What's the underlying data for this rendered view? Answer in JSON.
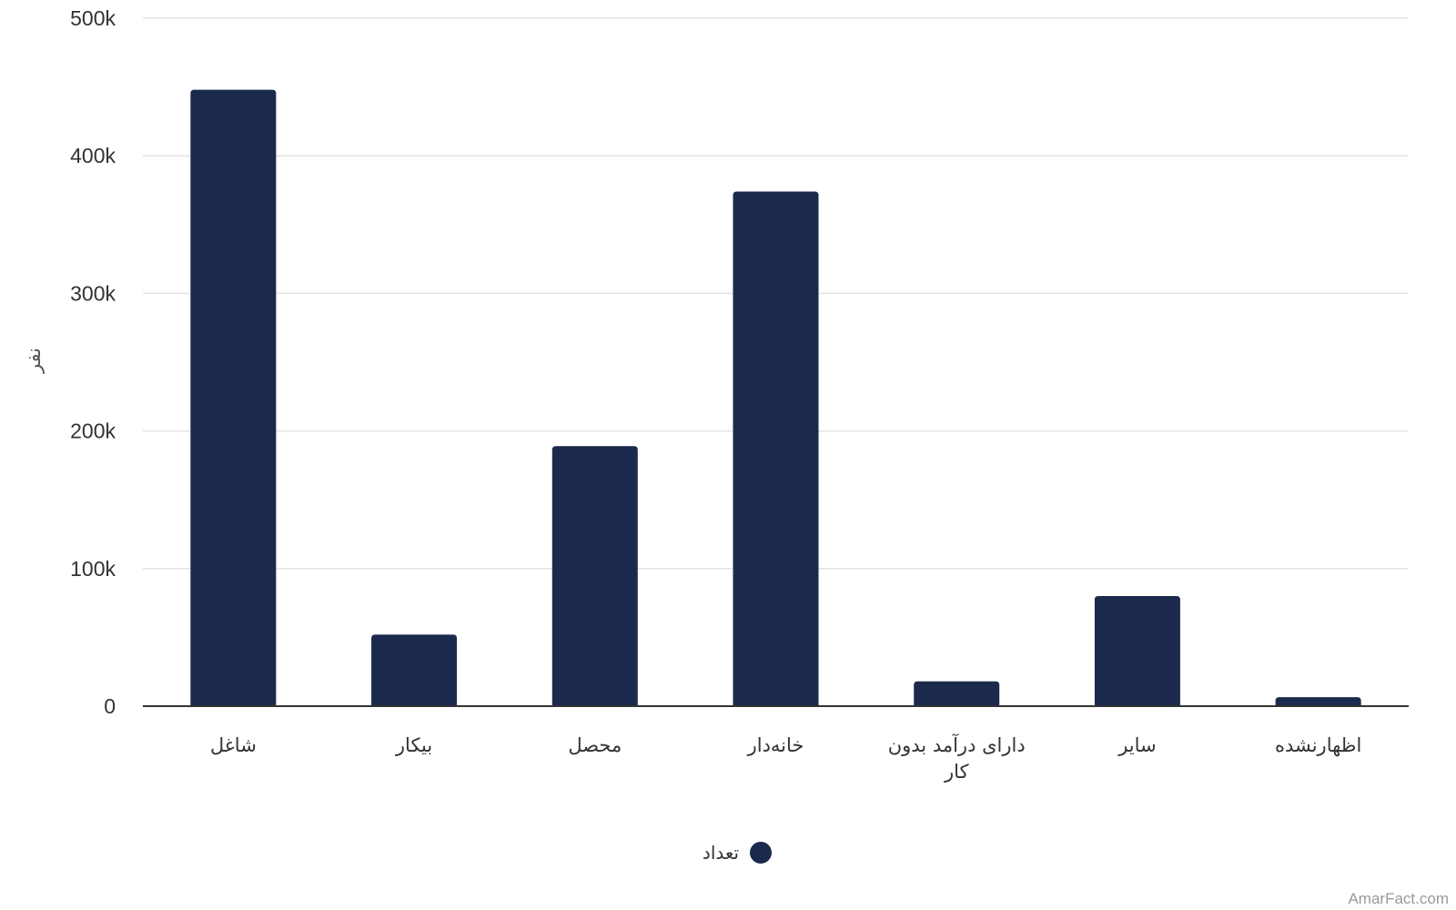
{
  "chart_data": {
    "type": "bar",
    "categories": [
      "شاغل",
      "بیکار",
      "محصل",
      "خانه‌دار",
      "دارای درآمد بدون کار",
      "سایر",
      "اظهارنشده"
    ],
    "series": [
      {
        "name": "تعداد",
        "values": [
          448000,
          52000,
          189000,
          374000,
          18000,
          80000,
          6500
        ]
      }
    ],
    "ylabel": "نفر",
    "xlabel": "",
    "ylim": [
      0,
      500000
    ],
    "yticks": [
      0,
      100000,
      200000,
      300000,
      400000,
      500000
    ],
    "ytick_labels": [
      "0",
      "100k",
      "200k",
      "300k",
      "400k",
      "500k"
    ],
    "grid": true,
    "legend_position": "bottom"
  },
  "colors": {
    "bar": "#1b2a4c"
  },
  "credit": "AmarFact.com"
}
